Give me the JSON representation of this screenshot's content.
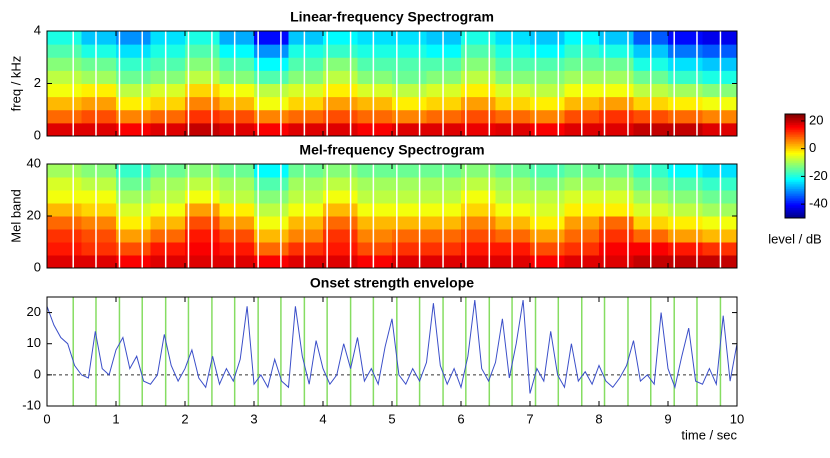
{
  "chart_data": [
    {
      "type": "heatmap",
      "title": "Linear-frequency Spectrogram",
      "ylabel": "freq / kHz",
      "xlim": [
        0,
        10
      ],
      "xticks": [
        0,
        1,
        2,
        3,
        4,
        5,
        6,
        7,
        8,
        9,
        10
      ],
      "ylim": [
        0,
        4
      ],
      "yticks": [
        0,
        2,
        4
      ],
      "beat_color": "#ffffff",
      "colorbar": {
        "label": "level / dB",
        "lim": [
          -50,
          25
        ],
        "ticks": [
          20,
          0,
          -20,
          -40
        ]
      },
      "levels": [
        [
          18,
          18,
          16,
          18,
          20,
          18,
          16,
          18,
          18,
          16,
          18,
          18,
          17,
          18,
          16,
          18,
          18,
          20,
          20,
          18
        ],
        [
          8,
          10,
          6,
          8,
          12,
          10,
          6,
          8,
          10,
          8,
          6,
          8,
          10,
          8,
          6,
          10,
          12,
          10,
          8,
          6
        ],
        [
          2,
          4,
          -2,
          0,
          6,
          2,
          -4,
          0,
          4,
          2,
          -2,
          0,
          4,
          0,
          -2,
          2,
          4,
          0,
          -2,
          -4
        ],
        [
          -4,
          -2,
          -8,
          -6,
          0,
          -4,
          -8,
          -6,
          -2,
          -6,
          -8,
          -6,
          -2,
          -6,
          -8,
          -4,
          -4,
          -8,
          -10,
          -12
        ],
        [
          -8,
          -10,
          -14,
          -12,
          -8,
          -12,
          -16,
          -12,
          -8,
          -12,
          -14,
          -12,
          -8,
          -12,
          -12,
          -10,
          -10,
          -14,
          -18,
          -20
        ],
        [
          -12,
          -14,
          -18,
          -16,
          -12,
          -16,
          -22,
          -16,
          -12,
          -16,
          -16,
          -16,
          -12,
          -16,
          -16,
          -14,
          -14,
          -20,
          -24,
          -26
        ],
        [
          -16,
          -20,
          -24,
          -20,
          -16,
          -22,
          -30,
          -20,
          -18,
          -20,
          -20,
          -22,
          -16,
          -20,
          -22,
          -18,
          -20,
          -26,
          -32,
          -34
        ],
        [
          -20,
          -26,
          -30,
          -24,
          -20,
          -28,
          -40,
          -26,
          -22,
          -24,
          -24,
          -26,
          -20,
          -24,
          -26,
          -22,
          -26,
          -34,
          -40,
          -42
        ]
      ]
    },
    {
      "type": "heatmap",
      "title": "Mel-frequency Spectrogram",
      "ylabel": "Mel band",
      "xlim": [
        0,
        10
      ],
      "xticks": [
        0,
        1,
        2,
        3,
        4,
        5,
        6,
        7,
        8,
        9,
        10
      ],
      "ylim": [
        0,
        40
      ],
      "yticks": [
        0,
        20,
        40
      ],
      "beat_color": "#ffffff",
      "levels": [
        [
          18,
          18,
          16,
          18,
          18,
          18,
          16,
          18,
          18,
          16,
          18,
          18,
          18,
          18,
          16,
          18,
          18,
          20,
          20,
          20
        ],
        [
          14,
          12,
          10,
          14,
          16,
          14,
          8,
          12,
          14,
          10,
          12,
          12,
          14,
          14,
          10,
          12,
          16,
          16,
          14,
          12
        ],
        [
          12,
          10,
          4,
          8,
          14,
          10,
          2,
          6,
          12,
          6,
          8,
          8,
          10,
          8,
          4,
          8,
          12,
          8,
          4,
          2
        ],
        [
          8,
          6,
          -2,
          2,
          10,
          4,
          -4,
          2,
          8,
          2,
          2,
          2,
          6,
          2,
          -2,
          4,
          8,
          0,
          -2,
          -4
        ],
        [
          2,
          0,
          -6,
          -4,
          4,
          -2,
          -8,
          -4,
          2,
          -4,
          -4,
          -4,
          0,
          -4,
          -6,
          -2,
          -2,
          -6,
          -8,
          -10
        ],
        [
          -4,
          -4,
          -10,
          -8,
          -4,
          -8,
          -12,
          -8,
          -4,
          -8,
          -8,
          -8,
          -4,
          -8,
          -8,
          -6,
          -6,
          -10,
          -12,
          -14
        ],
        [
          -6,
          -8,
          -14,
          -10,
          -8,
          -10,
          -16,
          -10,
          -8,
          -10,
          -10,
          -10,
          -8,
          -10,
          -12,
          -10,
          -10,
          -14,
          -16,
          -18
        ],
        [
          -10,
          -12,
          -18,
          -14,
          -12,
          -14,
          -22,
          -14,
          -12,
          -14,
          -14,
          -14,
          -12,
          -14,
          -16,
          -14,
          -14,
          -18,
          -22,
          -24
        ]
      ]
    },
    {
      "type": "line",
      "title": "Onset strength envelope",
      "xlabel": "time / sec",
      "xlim": [
        0,
        10
      ],
      "xticks": [
        0,
        1,
        2,
        3,
        4,
        5,
        6,
        7,
        8,
        9,
        10
      ],
      "ylim": [
        -10,
        25
      ],
      "yticks": [
        -10,
        0,
        10,
        20
      ],
      "color": "#3b4fc9",
      "beat_color": "#86dd62",
      "beats": [
        0.38,
        0.71,
        1.05,
        1.38,
        1.72,
        2.05,
        2.39,
        2.72,
        3.06,
        3.39,
        3.73,
        4.06,
        4.4,
        4.73,
        5.07,
        5.4,
        5.74,
        6.07,
        6.41,
        6.74,
        7.08,
        7.41,
        7.75,
        8.08,
        8.42,
        8.75,
        9.09,
        9.42,
        9.76
      ],
      "x": [
        0,
        0.1,
        0.2,
        0.3,
        0.4,
        0.5,
        0.6,
        0.7,
        0.8,
        0.9,
        1,
        1.1,
        1.2,
        1.3,
        1.4,
        1.5,
        1.6,
        1.7,
        1.8,
        1.9,
        2,
        2.1,
        2.2,
        2.3,
        2.4,
        2.5,
        2.6,
        2.7,
        2.8,
        2.9,
        3,
        3.1,
        3.2,
        3.3,
        3.4,
        3.5,
        3.6,
        3.7,
        3.8,
        3.9,
        4,
        4.1,
        4.2,
        4.3,
        4.4,
        4.5,
        4.6,
        4.7,
        4.8,
        4.9,
        5,
        5.1,
        5.2,
        5.3,
        5.4,
        5.5,
        5.6,
        5.7,
        5.8,
        5.9,
        6,
        6.1,
        6.2,
        6.3,
        6.4,
        6.5,
        6.6,
        6.7,
        6.8,
        6.9,
        7,
        7.1,
        7.2,
        7.3,
        7.4,
        7.5,
        7.6,
        7.7,
        7.8,
        7.9,
        8,
        8.1,
        8.2,
        8.3,
        8.4,
        8.5,
        8.6,
        8.7,
        8.8,
        8.9,
        9,
        9.1,
        9.2,
        9.3,
        9.4,
        9.5,
        9.6,
        9.7,
        9.8,
        9.9,
        10
      ],
      "values": [
        22,
        16,
        12,
        10,
        3,
        0,
        -1,
        14,
        2,
        0,
        8,
        12,
        2,
        6,
        -2,
        -3,
        0,
        13,
        3,
        -2,
        2,
        8,
        -1,
        -4,
        6,
        -3,
        2,
        -2,
        5,
        22,
        -3,
        0,
        -4,
        5,
        -2,
        -4,
        22,
        6,
        -3,
        11,
        2,
        -3,
        0,
        10,
        2,
        12,
        -2,
        2,
        -3,
        9,
        18,
        0,
        -3,
        2,
        -2,
        4,
        23,
        3,
        -3,
        2,
        -4,
        6,
        24,
        2,
        -2,
        4,
        18,
        -1,
        10,
        24,
        -6,
        2,
        -2,
        14,
        0,
        -4,
        10,
        -2,
        1,
        -3,
        3,
        -2,
        -4,
        -1,
        3,
        11,
        -2,
        0,
        -3,
        20,
        2,
        -4,
        6,
        15,
        -2,
        -3,
        2,
        -3,
        19,
        -2,
        10
      ]
    }
  ]
}
